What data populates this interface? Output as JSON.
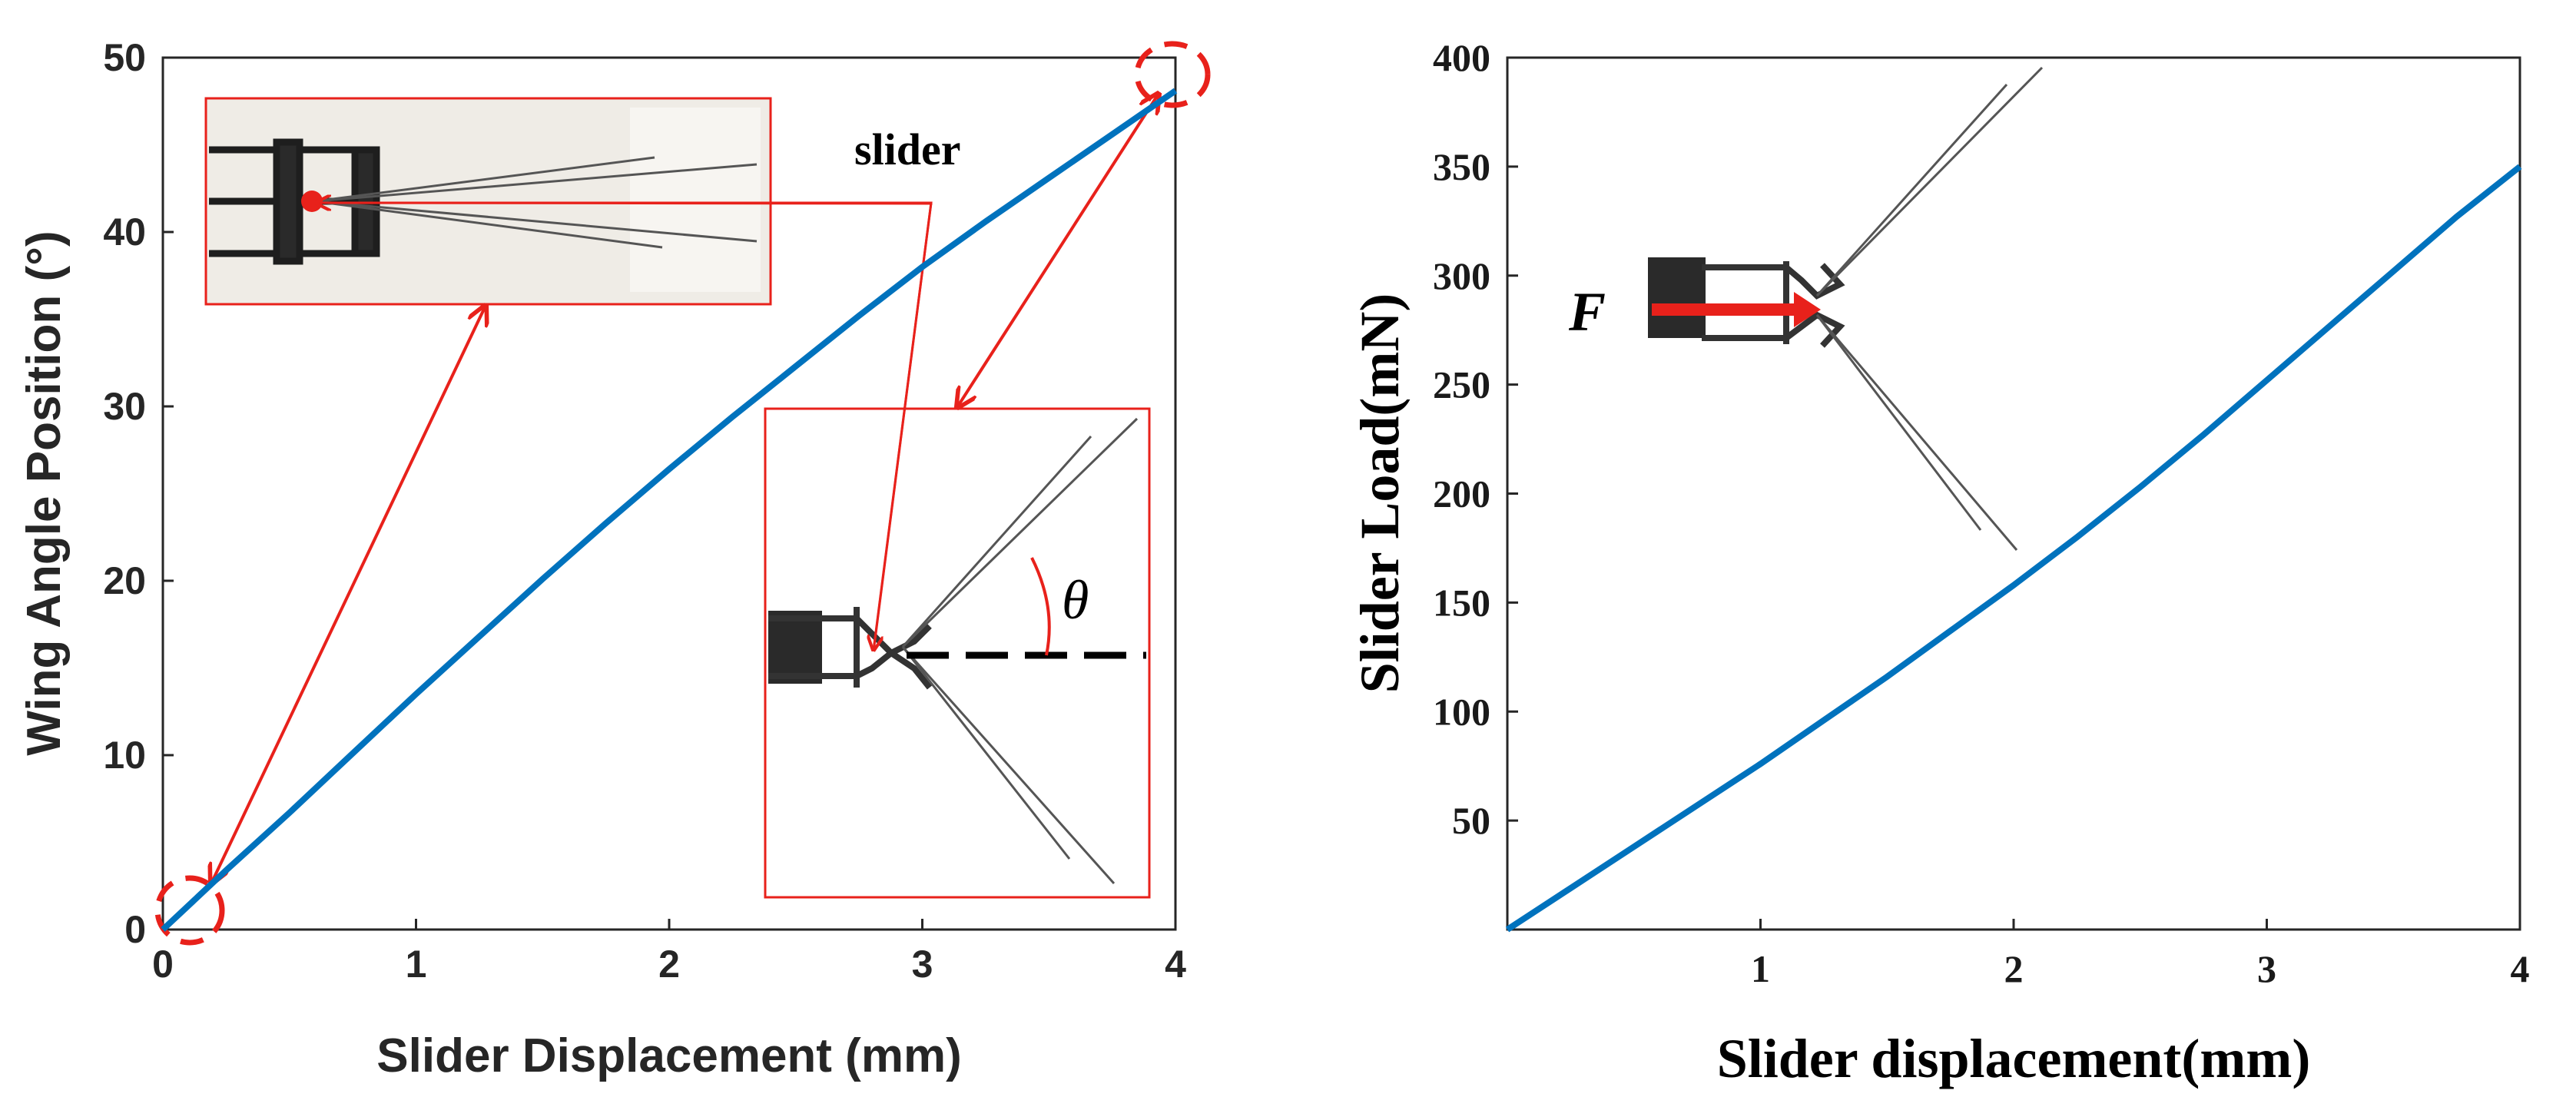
{
  "colors": {
    "series": "#0072bd",
    "annotation": "#e8211b",
    "axis": "#262626"
  },
  "chart_data": [
    {
      "type": "line",
      "xlabel": "Slider Displacement (mm)",
      "ylabel": "Wing Angle Position (°)",
      "xlim": [
        0,
        4
      ],
      "ylim": [
        0,
        50
      ],
      "xticks": [
        "0",
        "1",
        "2",
        "3",
        "4"
      ],
      "yticks": [
        "0",
        "10",
        "20",
        "30",
        "40",
        "50"
      ],
      "grid": false,
      "series": [
        {
          "x": [
            0,
            0.25,
            0.5,
            0.75,
            1,
            1.25,
            1.5,
            1.75,
            2,
            2.25,
            2.5,
            2.75,
            3,
            3.25,
            3.5,
            3.75,
            4
          ],
          "y": [
            0,
            3.4,
            6.7,
            10.1,
            13.5,
            16.8,
            20.1,
            23.3,
            26.4,
            29.4,
            32.3,
            35.2,
            38.0,
            40.6,
            43.1,
            45.6,
            48.1
          ]
        }
      ],
      "annotations": {
        "slider_label": "slider",
        "angle_symbol": "θ"
      }
    },
    {
      "type": "line",
      "xlabel": "Slider displacement(mm)",
      "ylabel": "Slider Load(mN)",
      "xlim": [
        0,
        4
      ],
      "ylim": [
        0,
        400
      ],
      "xticks": [
        "1",
        "2",
        "3",
        "4"
      ],
      "yticks": [
        "50",
        "100",
        "150",
        "200",
        "250",
        "300",
        "350",
        "400"
      ],
      "grid": false,
      "series": [
        {
          "x": [
            0,
            0.25,
            0.5,
            0.75,
            1,
            1.25,
            1.5,
            1.75,
            2,
            2.25,
            2.5,
            2.75,
            3,
            3.25,
            3.5,
            3.75,
            4
          ],
          "y": [
            0,
            19,
            38,
            57,
            76,
            96,
            116,
            137,
            158,
            180,
            203,
            227,
            252,
            277,
            302,
            327,
            350
          ]
        }
      ],
      "annotations": {
        "force_symbol": "F"
      }
    }
  ]
}
